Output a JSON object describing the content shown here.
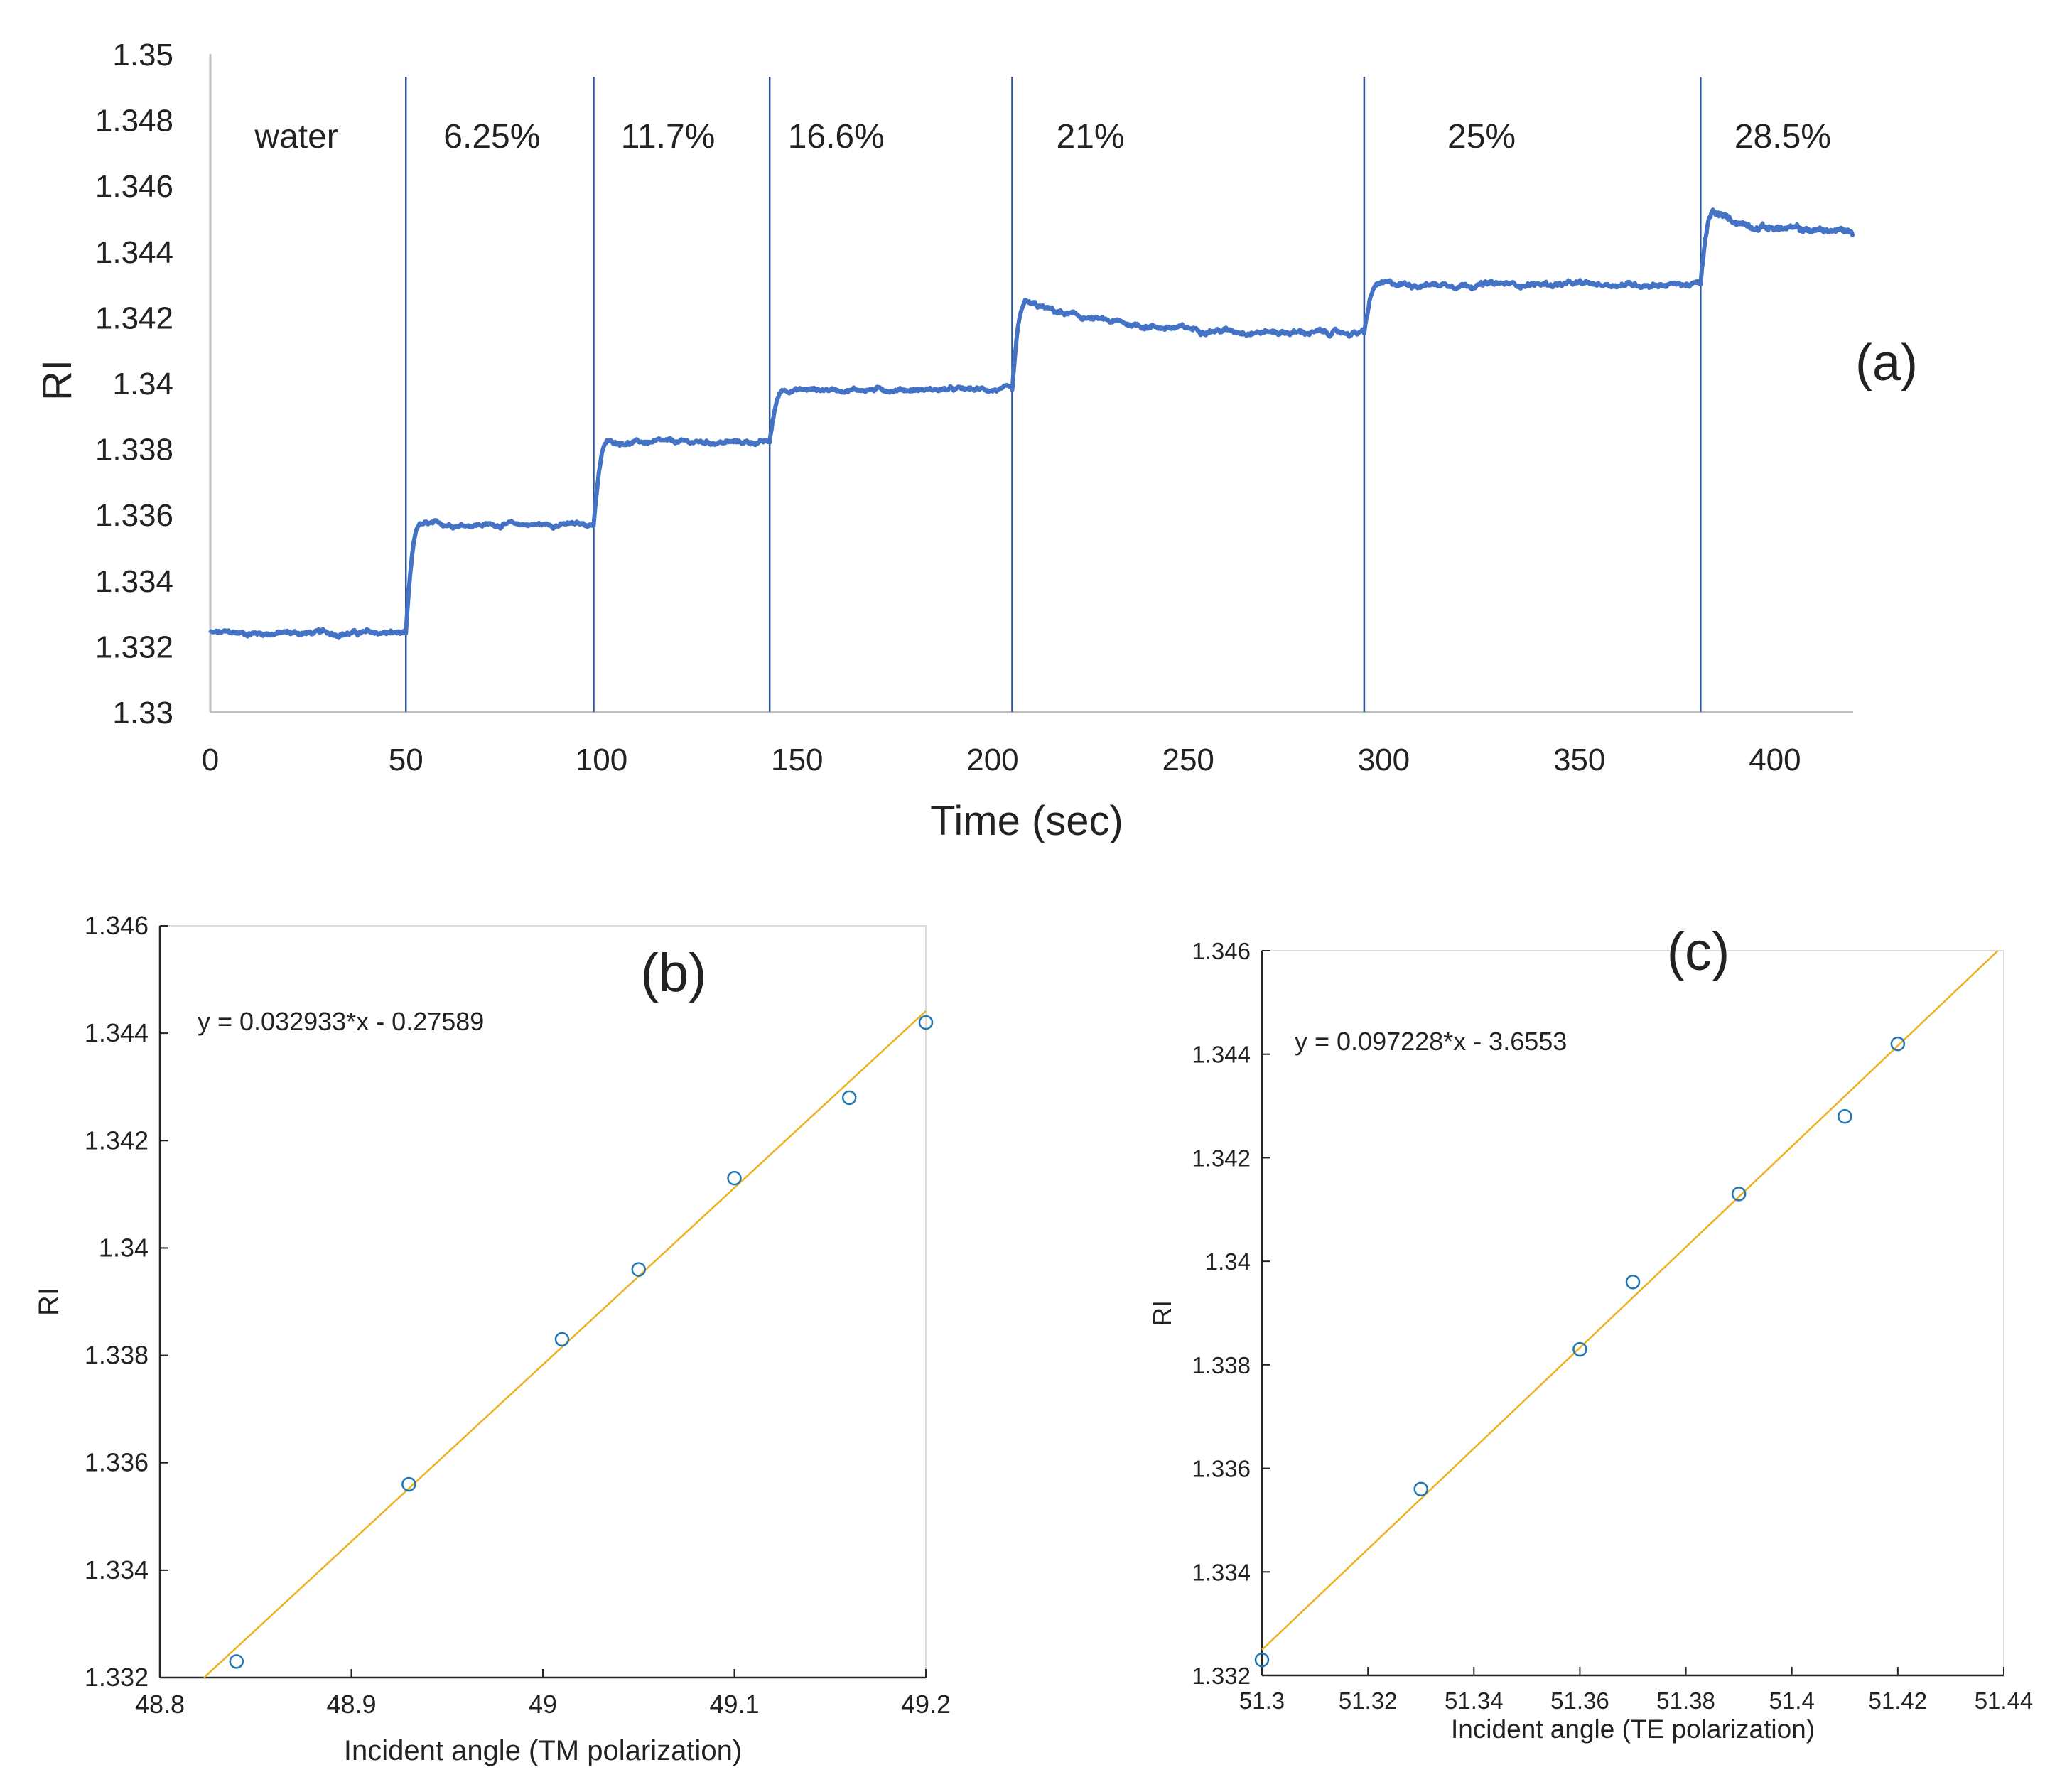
{
  "chart_data": [
    {
      "id": "a",
      "type": "line",
      "panel_label": "(a)",
      "xlabel": "Time (sec)",
      "ylabel": "RI",
      "xlim": [
        0,
        420
      ],
      "ylim": [
        1.33,
        1.35
      ],
      "xticks": [
        0,
        50,
        100,
        150,
        200,
        250,
        300,
        350,
        400
      ],
      "yticks": [
        1.33,
        1.332,
        1.334,
        1.336,
        1.338,
        1.34,
        1.342,
        1.344,
        1.346,
        1.348,
        1.35
      ],
      "ytick_labels": [
        "1.33",
        "1.332",
        "1.334",
        "1.336",
        "1.338",
        "1.34",
        "1.342",
        "1.344",
        "1.346",
        "1.348",
        "1.35"
      ],
      "color": "#4472C4",
      "markers": [
        50,
        98,
        143,
        205,
        295,
        381
      ],
      "regions": [
        {
          "label": "water",
          "x": 22
        },
        {
          "label": "6.25%",
          "x": 72
        },
        {
          "label": "11.7%",
          "x": 117
        },
        {
          "label": "16.6%",
          "x": 160
        },
        {
          "label": "21%",
          "x": 225
        },
        {
          "label": "25%",
          "x": 325
        },
        {
          "label": "28.5%",
          "x": 402
        }
      ],
      "series_segments": [
        {
          "x0": 0,
          "x1": 50,
          "level": 1.3324,
          "noise": 0.00012
        },
        {
          "x0": 50,
          "x1": 98,
          "level": 1.3357,
          "noise": 0.0001
        },
        {
          "x0": 98,
          "x1": 143,
          "level": 1.3382,
          "noise": 0.0001
        },
        {
          "x0": 143,
          "x1": 205,
          "level": 1.3398,
          "noise": 0.0001
        },
        {
          "x0": 205,
          "x1": 295,
          "level": 1.3415,
          "noise": 0.00012,
          "start": 1.3426
        },
        {
          "x0": 295,
          "x1": 381,
          "level": 1.343,
          "noise": 0.00012
        },
        {
          "x0": 381,
          "x1": 420,
          "level": 1.3446,
          "noise": 0.00015,
          "start": 1.3454
        }
      ]
    },
    {
      "id": "b",
      "type": "scatter",
      "panel_label": "(b)",
      "xlabel": "Incident angle (TM polarization)",
      "ylabel": "RI",
      "xlim": [
        48.8,
        49.2
      ],
      "ylim": [
        1.332,
        1.346
      ],
      "xticks": [
        48.8,
        48.9,
        49,
        49.1,
        49.2
      ],
      "xtick_labels": [
        "48.8",
        "48.9",
        "49",
        "49.1",
        "49.2"
      ],
      "yticks": [
        1.332,
        1.334,
        1.336,
        1.338,
        1.34,
        1.342,
        1.344,
        1.346
      ],
      "ytick_labels": [
        "1.332",
        "1.334",
        "1.336",
        "1.338",
        "1.34",
        "1.342",
        "1.344",
        "1.346"
      ],
      "equation": "y = 0.032933*x - 0.27589",
      "fit": {
        "slope": 0.032933,
        "intercept": -0.27589
      },
      "points": [
        {
          "x": 48.84,
          "y": 1.3323
        },
        {
          "x": 48.93,
          "y": 1.3356
        },
        {
          "x": 49.01,
          "y": 1.3383
        },
        {
          "x": 49.05,
          "y": 1.3396
        },
        {
          "x": 49.1,
          "y": 1.3413
        },
        {
          "x": 49.16,
          "y": 1.3428
        },
        {
          "x": 49.2,
          "y": 1.3442
        }
      ],
      "marker_color": "#1f77b4",
      "fit_color": "#EDB120"
    },
    {
      "id": "c",
      "type": "scatter",
      "panel_label": "(c)",
      "xlabel": "Incident angle (TE polarization)",
      "ylabel": "RI",
      "xlim": [
        51.3,
        51.44
      ],
      "ylim": [
        1.332,
        1.346
      ],
      "xticks": [
        51.3,
        51.32,
        51.34,
        51.36,
        51.38,
        51.4,
        51.42,
        51.44
      ],
      "xtick_labels": [
        "51.3",
        "51.32",
        "51.34",
        "51.36",
        "51.38",
        "51.4",
        "51.42",
        "51.44"
      ],
      "yticks": [
        1.332,
        1.334,
        1.336,
        1.338,
        1.34,
        1.342,
        1.344,
        1.346
      ],
      "ytick_labels": [
        "1.332",
        "1.334",
        "1.336",
        "1.338",
        "1.34",
        "1.342",
        "1.344",
        "1.346"
      ],
      "equation": "y = 0.097228*x - 3.6553",
      "fit": {
        "slope": 0.097228,
        "intercept": -3.6553
      },
      "points": [
        {
          "x": 51.3,
          "y": 1.3323
        },
        {
          "x": 51.33,
          "y": 1.3356
        },
        {
          "x": 51.36,
          "y": 1.3383
        },
        {
          "x": 51.37,
          "y": 1.3396
        },
        {
          "x": 51.39,
          "y": 1.3413
        },
        {
          "x": 51.41,
          "y": 1.3428
        },
        {
          "x": 51.42,
          "y": 1.3442
        }
      ],
      "marker_color": "#1f77b4",
      "fit_color": "#EDB120"
    }
  ]
}
